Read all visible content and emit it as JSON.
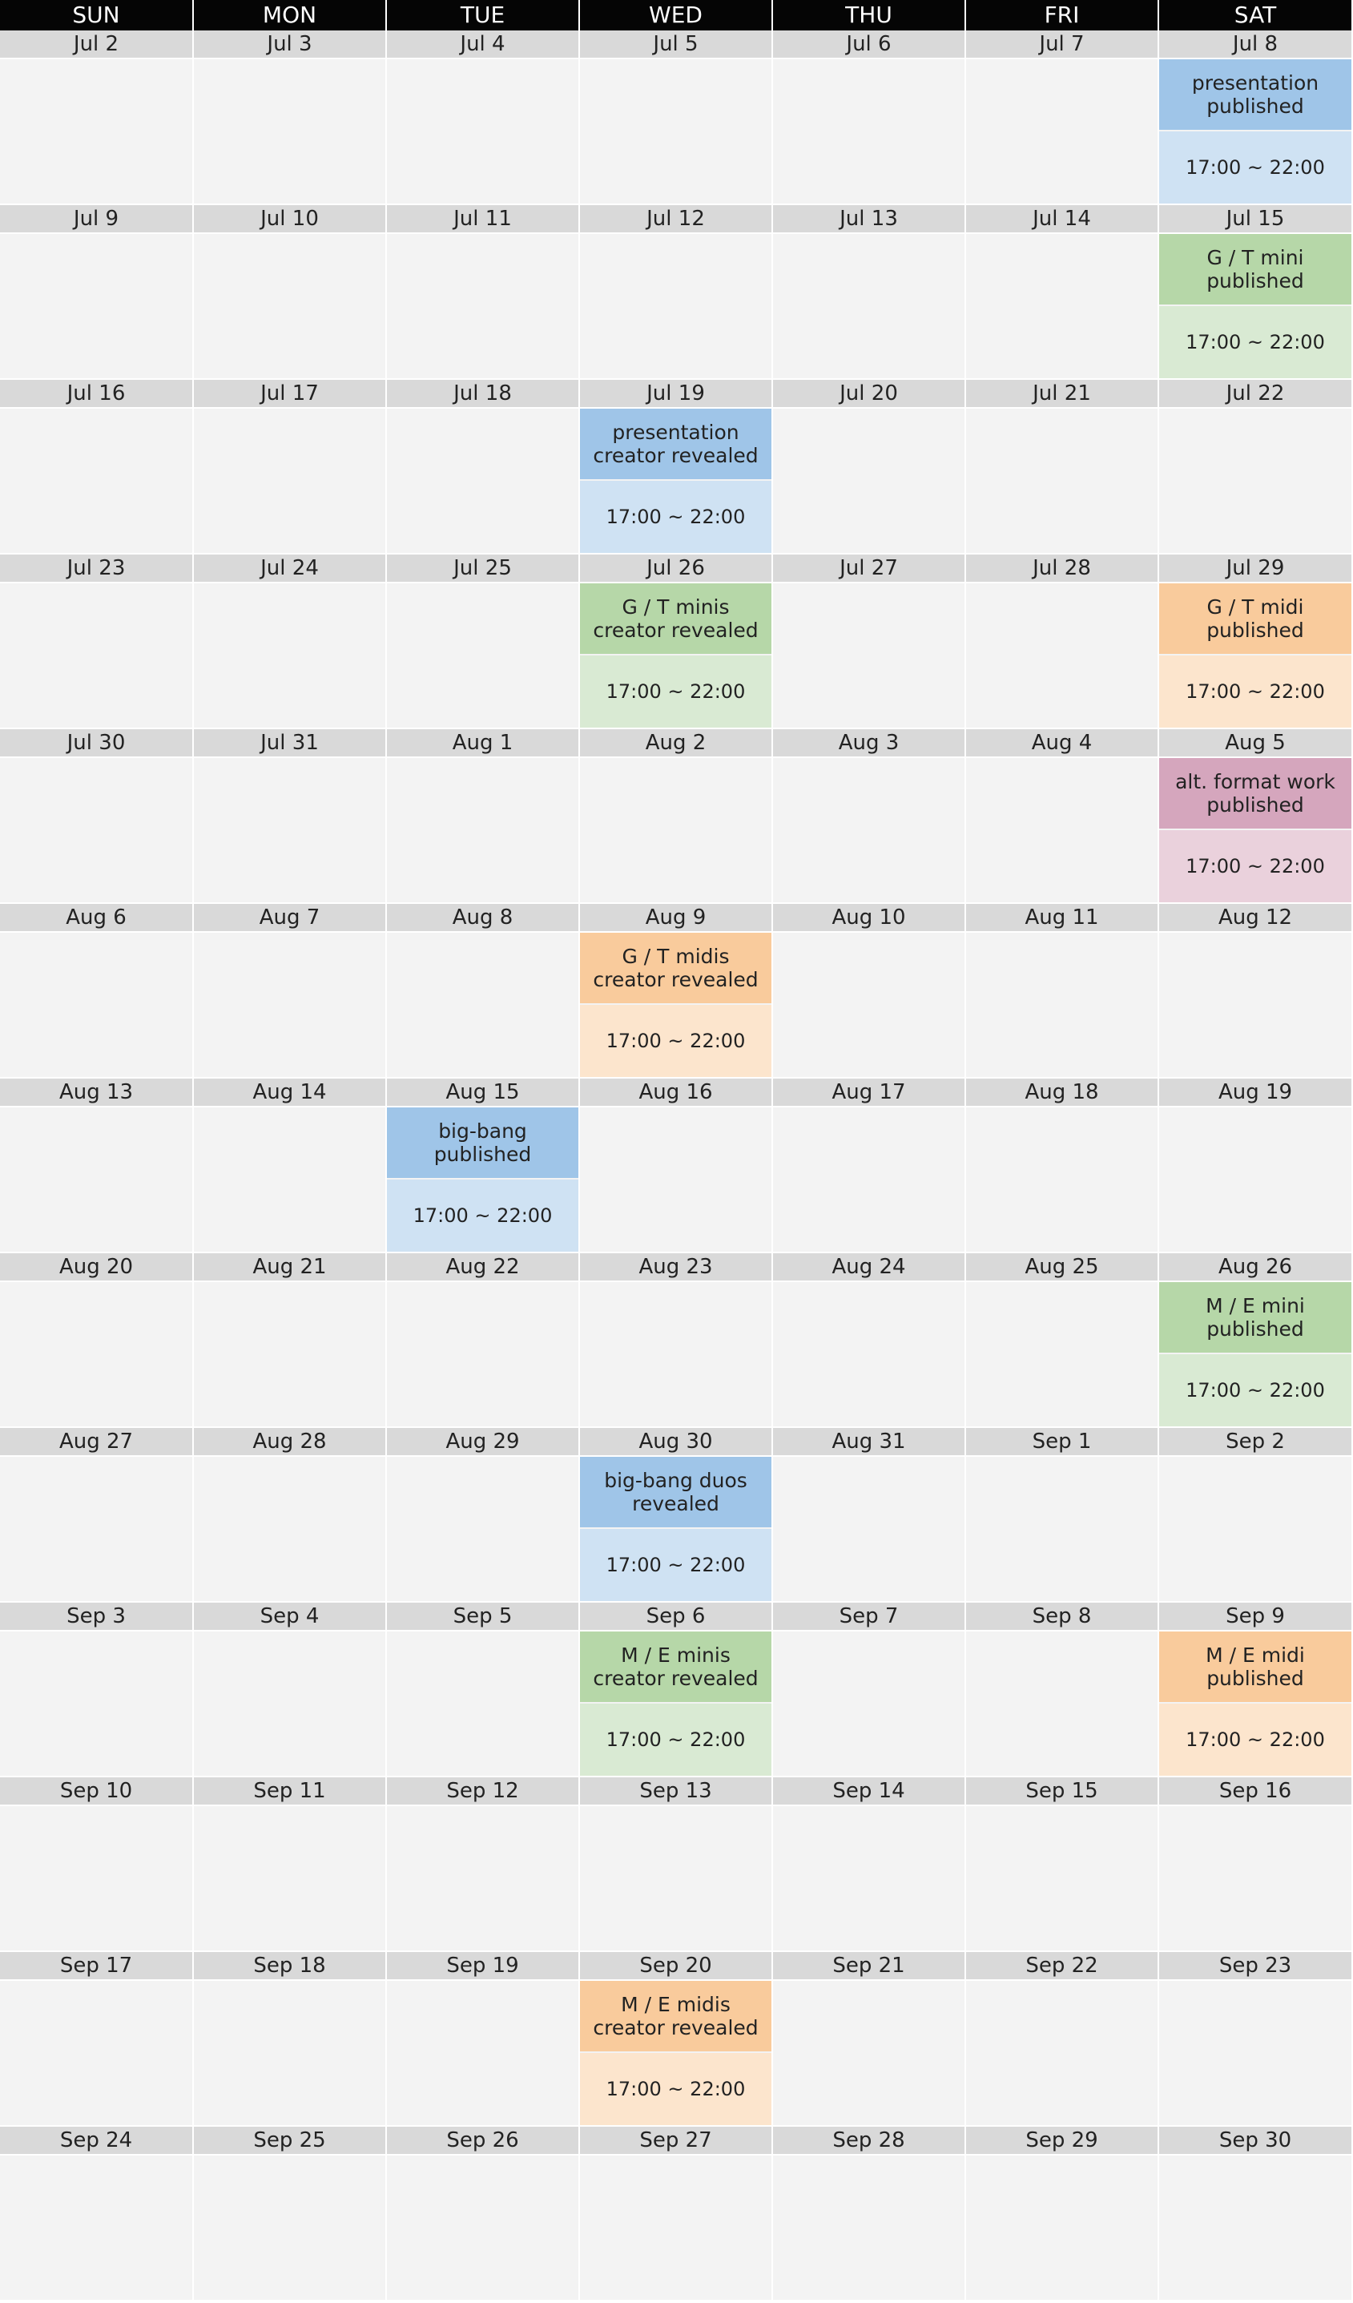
{
  "weekdays": [
    "SUN",
    "MON",
    "TUE",
    "WED",
    "THU",
    "FRI",
    "SAT"
  ],
  "colors": {
    "blue": {
      "title": "#9fc5e8",
      "time": "#cfe2f3"
    },
    "green": {
      "title": "#b6d7a8",
      "time": "#d9ead3"
    },
    "orange": {
      "title": "#f9cb9c",
      "time": "#fce5cd"
    },
    "pink": {
      "title": "#d5a6bd",
      "time": "#ead1dc"
    }
  },
  "weeks": [
    {
      "dates": [
        "Jul 2",
        "Jul 3",
        "Jul 4",
        "Jul 5",
        "Jul 6",
        "Jul 7",
        "Jul 8"
      ],
      "events": [
        {
          "day": 6,
          "title": "presentation\npublished",
          "time": "17:00 ~ 22:00",
          "color": "blue"
        }
      ]
    },
    {
      "dates": [
        "Jul 9",
        "Jul 10",
        "Jul 11",
        "Jul 12",
        "Jul 13",
        "Jul 14",
        "Jul 15"
      ],
      "events": [
        {
          "day": 6,
          "title": "G / T mini\npublished",
          "time": "17:00 ~ 22:00",
          "color": "green"
        }
      ]
    },
    {
      "dates": [
        "Jul 16",
        "Jul 17",
        "Jul 18",
        "Jul 19",
        "Jul 20",
        "Jul 21",
        "Jul 22"
      ],
      "events": [
        {
          "day": 3,
          "title": "presentation\ncreator revealed",
          "time": "17:00 ~ 22:00",
          "color": "blue"
        }
      ]
    },
    {
      "dates": [
        "Jul 23",
        "Jul 24",
        "Jul 25",
        "Jul 26",
        "Jul 27",
        "Jul 28",
        "Jul 29"
      ],
      "events": [
        {
          "day": 3,
          "title": "G / T minis\ncreator revealed",
          "time": "17:00 ~ 22:00",
          "color": "green"
        },
        {
          "day": 6,
          "title": "G / T midi\npublished",
          "time": "17:00 ~ 22:00",
          "color": "orange"
        }
      ]
    },
    {
      "dates": [
        "Jul 30",
        "Jul 31",
        "Aug 1",
        "Aug 2",
        "Aug 3",
        "Aug 4",
        "Aug 5"
      ],
      "events": [
        {
          "day": 6,
          "title": "alt. format work\npublished",
          "time": "17:00 ~ 22:00",
          "color": "pink"
        }
      ]
    },
    {
      "dates": [
        "Aug 6",
        "Aug 7",
        "Aug 8",
        "Aug 9",
        "Aug 10",
        "Aug 11",
        "Aug 12"
      ],
      "events": [
        {
          "day": 3,
          "title": "G / T midis\ncreator revealed",
          "time": "17:00 ~ 22:00",
          "color": "orange"
        }
      ]
    },
    {
      "dates": [
        "Aug 13",
        "Aug 14",
        "Aug 15",
        "Aug 16",
        "Aug 17",
        "Aug 18",
        "Aug 19"
      ],
      "events": [
        {
          "day": 2,
          "title": "big-bang\npublished",
          "time": "17:00 ~ 22:00",
          "color": "blue"
        }
      ]
    },
    {
      "dates": [
        "Aug 20",
        "Aug 21",
        "Aug 22",
        "Aug 23",
        "Aug 24",
        "Aug 25",
        "Aug 26"
      ],
      "events": [
        {
          "day": 6,
          "title": "M / E mini\npublished",
          "time": "17:00 ~ 22:00",
          "color": "green"
        }
      ]
    },
    {
      "dates": [
        "Aug 27",
        "Aug 28",
        "Aug 29",
        "Aug 30",
        "Aug 31",
        "Sep 1",
        "Sep 2"
      ],
      "events": [
        {
          "day": 3,
          "title": "big-bang duos\nrevealed",
          "time": "17:00 ~ 22:00",
          "color": "blue"
        }
      ]
    },
    {
      "dates": [
        "Sep 3",
        "Sep 4",
        "Sep 5",
        "Sep 6",
        "Sep 7",
        "Sep 8",
        "Sep 9"
      ],
      "events": [
        {
          "day": 3,
          "title": "M / E minis\ncreator revealed",
          "time": "17:00 ~ 22:00",
          "color": "green"
        },
        {
          "day": 6,
          "title": "M / E midi\npublished",
          "time": "17:00 ~ 22:00",
          "color": "orange"
        }
      ]
    },
    {
      "dates": [
        "Sep 10",
        "Sep 11",
        "Sep 12",
        "Sep 13",
        "Sep 14",
        "Sep 15",
        "Sep 16"
      ],
      "events": []
    },
    {
      "dates": [
        "Sep 17",
        "Sep 18",
        "Sep 19",
        "Sep 20",
        "Sep 21",
        "Sep 22",
        "Sep 23"
      ],
      "events": [
        {
          "day": 3,
          "title": "M / E midis\ncreator revealed",
          "time": "17:00 ~ 22:00",
          "color": "orange"
        }
      ]
    },
    {
      "dates": [
        "Sep 24",
        "Sep 25",
        "Sep 26",
        "Sep 27",
        "Sep 28",
        "Sep 29",
        "Sep 30"
      ],
      "events": []
    }
  ]
}
